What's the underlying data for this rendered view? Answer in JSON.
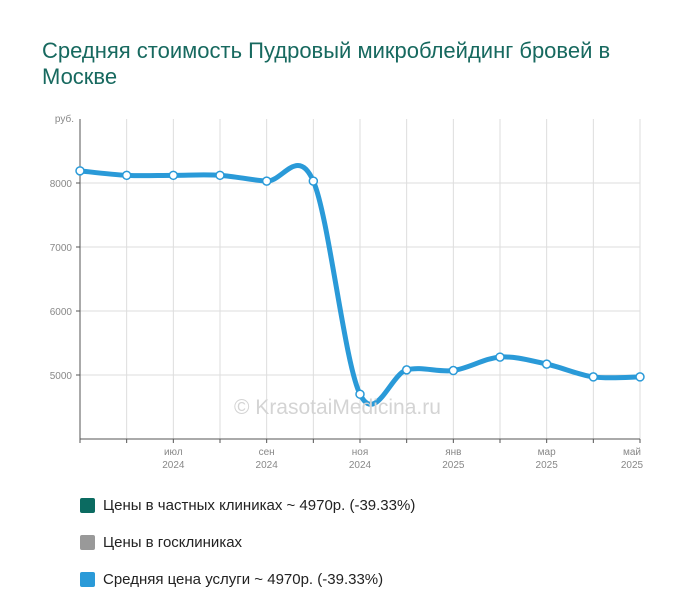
{
  "title": "Средняя стоимость Пудровый микроблейдинг бровей в Москве",
  "watermark": "© KrasotaiMedicina.ru",
  "colors": {
    "private": "#0b6b61",
    "public": "#999999",
    "average": "#2a9ad8",
    "grid": "#dddddd",
    "axis": "#555555",
    "tick_text": "#888888",
    "title": "#17695f"
  },
  "legend": [
    {
      "label": "Цены в частных клиниках ~ 4970р. (-39.33%)",
      "color": "#0b6b61"
    },
    {
      "label": "Цены в госклиниках",
      "color": "#999999"
    },
    {
      "label": "Средняя цена услуги ~ 4970р. (-39.33%)",
      "color": "#2a9ad8"
    }
  ],
  "chart_data": {
    "type": "line",
    "title": "Средняя стоимость Пудровый микроблейдинг бровей в Москве",
    "ylabel": "руб.",
    "xlabel": "",
    "ylim": [
      4000,
      9000
    ],
    "yticks": [
      5000,
      6000,
      7000,
      8000
    ],
    "x": [
      "2024-05",
      "2024-06",
      "2024-07",
      "2024-08",
      "2024-09",
      "2024-10",
      "2024-11",
      "2024-12",
      "2025-01",
      "2025-02",
      "2025-03",
      "2025-04",
      "2025-05"
    ],
    "xticks": [
      {
        "month": "июл",
        "year": "2024"
      },
      {
        "month": "сен",
        "year": "2024"
      },
      {
        "month": "ноя",
        "year": "2024"
      },
      {
        "month": "янв",
        "year": "2025"
      },
      {
        "month": "мар",
        "year": "2025"
      },
      {
        "month": "май",
        "year": "2025"
      }
    ],
    "grid": true,
    "legend_position": "bottom",
    "series": [
      {
        "name": "Средняя цена услуги",
        "color": "#2a9ad8",
        "values": [
          8190,
          8120,
          8120,
          8120,
          8030,
          8030,
          4700,
          5080,
          5070,
          5280,
          5170,
          4970,
          4970
        ]
      }
    ]
  }
}
